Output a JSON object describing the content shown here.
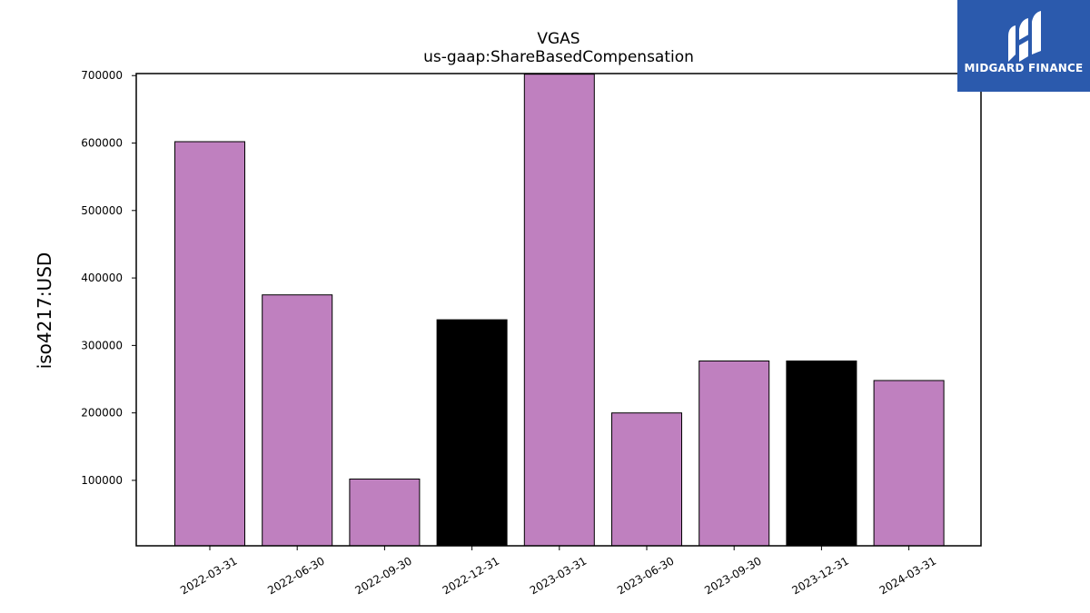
{
  "chart_data": {
    "type": "bar",
    "title": "VGAS",
    "subtitle": "us-gaap:ShareBasedCompensation",
    "xlabel": "",
    "ylabel": "iso4217:USD",
    "categories": [
      "2022-03-31",
      "2022-06-30",
      "2022-09-30",
      "2022-12-31",
      "2023-03-31",
      "2023-06-30",
      "2023-09-30",
      "2023-12-31",
      "2024-03-31"
    ],
    "values": [
      602000,
      375000,
      102000,
      338000,
      702000,
      200000,
      277000,
      277000,
      248000
    ],
    "bar_colors": [
      "#bf80bf",
      "#bf80bf",
      "#bf80bf",
      "#000000",
      "#bf80bf",
      "#bf80bf",
      "#bf80bf",
      "#000000",
      "#bf80bf"
    ],
    "ylim": [
      3000,
      703000
    ],
    "yticks": [
      100000,
      200000,
      300000,
      400000,
      500000,
      600000,
      700000
    ],
    "ytick_labels": [
      "100000",
      "200000",
      "300000",
      "400000",
      "500000",
      "600000",
      "700000"
    ],
    "grid": false,
    "legend": "none"
  },
  "logo": {
    "text": "MIDGARD FINANCE",
    "background": "#2b5aad",
    "icon": "midgard-logo-icon"
  }
}
